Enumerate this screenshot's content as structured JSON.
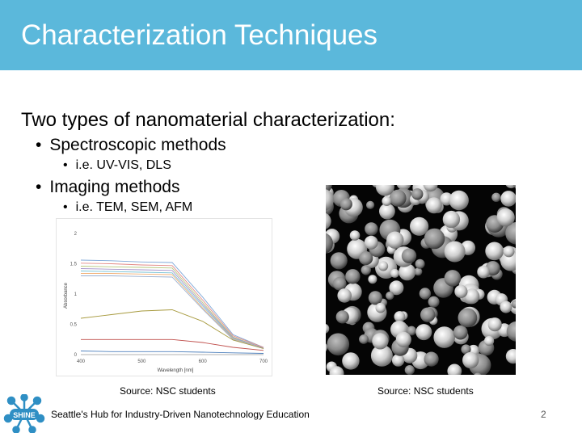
{
  "slide": {
    "title": "Characterization Techniques",
    "heading": "Two types of nanomaterial characterization:",
    "bullets": [
      {
        "text": "Spectroscopic methods",
        "sub": "i.e. UV-VIS, DLS"
      },
      {
        "text": "Imaging methods",
        "sub": "i.e. TEM, SEM, AFM"
      }
    ],
    "bullet_glyph": "•",
    "source_left": "Source: NSC students",
    "source_right": "Source: NSC students",
    "footer": "Seattle's Hub for Industry-Driven Nanotechnology Education",
    "page_number": "2",
    "logo_text": "SHINE",
    "colors": {
      "header": "#5bb8db",
      "logo": "#2f8fc4"
    }
  },
  "chart_data": {
    "type": "line",
    "title": "",
    "xlabel": "Wavelength [nm]",
    "ylabel": "Absorbance",
    "xlim": [
      400,
      700
    ],
    "ylim": [
      0,
      2
    ],
    "x_ticks": [
      "400",
      "500",
      "600",
      "700"
    ],
    "y_ticks": [
      "0",
      "0.5",
      "1",
      "1.5",
      "2"
    ],
    "x": [
      400,
      450,
      500,
      550,
      600,
      650,
      700
    ],
    "series": [
      {
        "values": [
          1.56,
          1.55,
          1.53,
          1.52,
          0.95,
          0.33,
          0.12
        ],
        "color": "#7fa8d8"
      },
      {
        "values": [
          1.51,
          1.5,
          1.48,
          1.47,
          0.9,
          0.31,
          0.12
        ],
        "color": "#e28a86"
      },
      {
        "values": [
          1.46,
          1.45,
          1.44,
          1.43,
          0.86,
          0.29,
          0.11
        ],
        "color": "#b7c77d"
      },
      {
        "values": [
          1.42,
          1.41,
          1.4,
          1.39,
          0.83,
          0.28,
          0.11
        ],
        "color": "#a594c9"
      },
      {
        "values": [
          1.38,
          1.37,
          1.36,
          1.35,
          0.8,
          0.27,
          0.1
        ],
        "color": "#79c3d6"
      },
      {
        "values": [
          1.34,
          1.34,
          1.33,
          1.32,
          0.77,
          0.26,
          0.1
        ],
        "color": "#f2b27a"
      },
      {
        "values": [
          1.3,
          1.3,
          1.29,
          1.28,
          0.75,
          0.25,
          0.1
        ],
        "color": "#9bb0cf"
      },
      {
        "values": [
          0.6,
          0.66,
          0.72,
          0.74,
          0.55,
          0.24,
          0.1
        ],
        "color": "#a79a3e"
      },
      {
        "values": [
          0.25,
          0.25,
          0.25,
          0.25,
          0.2,
          0.12,
          0.07
        ],
        "color": "#c0504d"
      },
      {
        "values": [
          0.06,
          0.05,
          0.05,
          0.05,
          0.04,
          0.03,
          0.02
        ],
        "color": "#4f81bd"
      }
    ]
  }
}
